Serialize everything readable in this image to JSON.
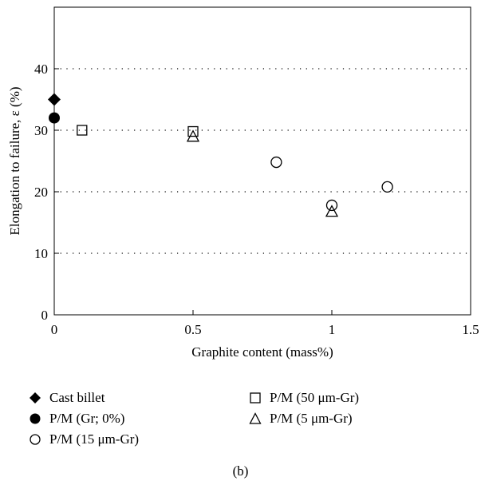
{
  "chart_data": {
    "type": "scatter",
    "xlabel": "Graphite content (mass%)",
    "ylabel": "Elongation to failure, ε (%)",
    "xlim": [
      0,
      1.5
    ],
    "ylim": [
      0,
      50
    ],
    "x_ticks": [
      "0",
      "0.5",
      "1",
      "1.5"
    ],
    "y_ticks": [
      "0",
      "10",
      "20",
      "30",
      "40"
    ],
    "grid": "horizontal dotted",
    "legend_position": "bottom",
    "series": [
      {
        "name": "Cast billet",
        "marker": "filled-diamond",
        "points": [
          {
            "x": 0,
            "y": 35
          }
        ]
      },
      {
        "name": "P/M (Gr; 0%)",
        "marker": "filled-circle",
        "points": [
          {
            "x": 0,
            "y": 32
          }
        ]
      },
      {
        "name": "P/M (15 μm-Gr)",
        "marker": "open-circle",
        "points": [
          {
            "x": 0.8,
            "y": 24.8
          },
          {
            "x": 1.0,
            "y": 17.8
          },
          {
            "x": 1.2,
            "y": 20.8
          }
        ]
      },
      {
        "name": "P/M (50 μm-Gr)",
        "marker": "open-square",
        "points": [
          {
            "x": 0.1,
            "y": 30
          },
          {
            "x": 0.5,
            "y": 29.8
          }
        ]
      },
      {
        "name": "P/M (5 μm-Gr)",
        "marker": "open-triangle",
        "points": [
          {
            "x": 0.5,
            "y": 29
          },
          {
            "x": 1.0,
            "y": 16.8
          }
        ]
      }
    ]
  },
  "caption": "(b)"
}
